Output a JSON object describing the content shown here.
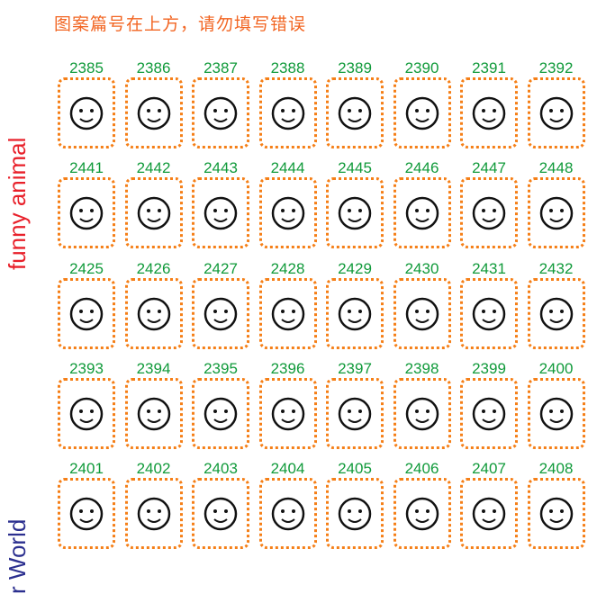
{
  "notice": "图案篇号在上方，请勿填写错误",
  "categories": [
    {
      "label": "funny animal",
      "color": "#e8202a"
    },
    {
      "label": "r World",
      "color": "#2b2f8f"
    }
  ],
  "rows": [
    {
      "items": [
        {
          "code": "2385",
          "icon": "donkey-face-icon"
        },
        {
          "code": "2386",
          "icon": "flamingo-icon"
        },
        {
          "code": "2387",
          "icon": "beaver-face-icon"
        },
        {
          "code": "2388",
          "icon": "leopard-face-icon"
        },
        {
          "code": "2389",
          "icon": "monkey-face-icon"
        },
        {
          "code": "2390",
          "icon": "hippo-face-icon"
        },
        {
          "code": "2391",
          "icon": "cow-face-icon"
        },
        {
          "code": "2392",
          "icon": "lion-face-icon"
        }
      ]
    },
    {
      "items": [
        {
          "code": "2441",
          "icon": "campfire-icon"
        },
        {
          "code": "2442",
          "icon": "turtle-icon"
        },
        {
          "code": "2443",
          "icon": "cave-painting-icon"
        },
        {
          "code": "2444",
          "icon": "fishbowl-icon"
        },
        {
          "code": "2445",
          "icon": "snail-spiral-icon"
        },
        {
          "code": "2446",
          "icon": "patterned-elephant-icon"
        },
        {
          "code": "2447",
          "icon": "spiral-sun-icon"
        },
        {
          "code": "2448",
          "icon": "bird-tribal-icon"
        }
      ]
    },
    {
      "items": [
        {
          "code": "2425",
          "icon": "cubist-face-icon"
        },
        {
          "code": "2426",
          "icon": "cubist-figure-icon"
        },
        {
          "code": "2427",
          "icon": "cubist-deer-icon"
        },
        {
          "code": "2428",
          "icon": "cubist-robot-icon"
        },
        {
          "code": "2429",
          "icon": "cubist-mask-icon"
        },
        {
          "code": "2430",
          "icon": "cubist-totem-icon"
        },
        {
          "code": "2431",
          "icon": "cubist-tiki-icon"
        },
        {
          "code": "2432",
          "icon": "cubist-spider-icon"
        }
      ]
    },
    {
      "items": [
        {
          "code": "2393",
          "icon": "ladybug-icon"
        },
        {
          "code": "2394",
          "icon": "pig-face-icon"
        },
        {
          "code": "2395",
          "icon": "dog-face-icon"
        },
        {
          "code": "2396",
          "icon": "elephant-face-icon"
        },
        {
          "code": "2397",
          "icon": "bear-face-icon"
        },
        {
          "code": "2398",
          "icon": "frog-face-icon"
        },
        {
          "code": "2399",
          "icon": "koala-face-icon"
        },
        {
          "code": "2400",
          "icon": "panda-face-icon"
        }
      ]
    },
    {
      "items": [
        {
          "code": "2401",
          "icon": "starfish-icon"
        },
        {
          "code": "2402",
          "icon": "conch-shell-icon"
        },
        {
          "code": "2403",
          "icon": "pufferfish-icon"
        },
        {
          "code": "2404",
          "icon": "tulip-shell-icon"
        },
        {
          "code": "2405",
          "icon": "seahorse-icon"
        },
        {
          "code": "2406",
          "icon": "nautilus-icon"
        },
        {
          "code": "2407",
          "icon": "angelfish-icon"
        },
        {
          "code": "2408",
          "icon": "octopus-icon"
        }
      ]
    }
  ]
}
